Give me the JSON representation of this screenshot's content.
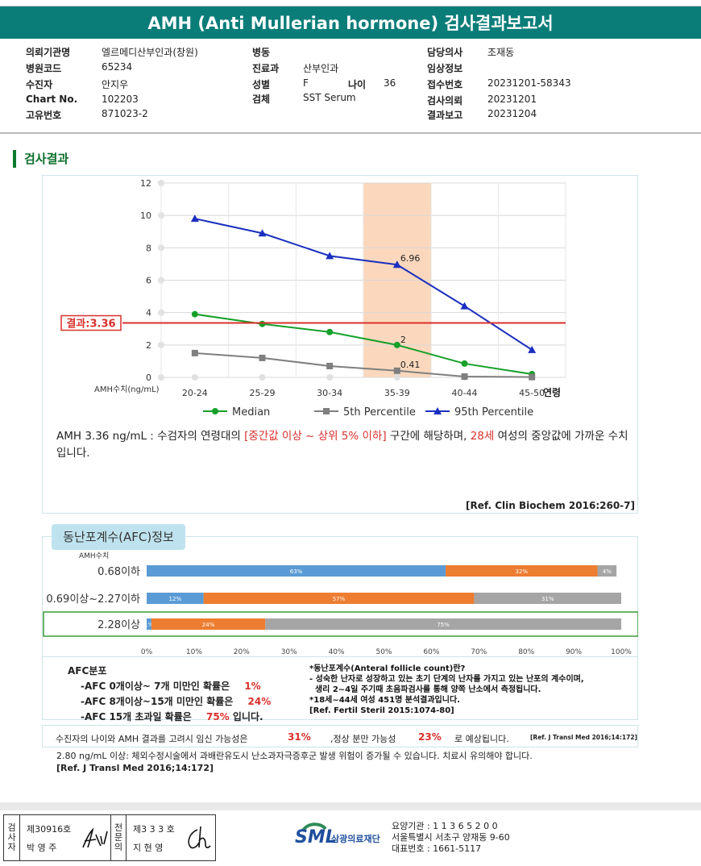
{
  "header": {
    "title": "AMH (Anti Mullerian hormone) 검사결과보고서"
  },
  "info": {
    "hospital_label": "의뢰기관명",
    "hospital": "엘르메디산부인과(창원)",
    "code_label": "병원코드",
    "code": "65234",
    "patient_label": "수진자",
    "patient": "안지우",
    "chart_label": "Chart No.",
    "chart": "102203",
    "id_label": "고유번호",
    "id": "871023-2",
    "ward_label": "병동",
    "ward": "",
    "dept_label": "진료과",
    "dept": "산부인과",
    "sex_label": "성별",
    "sex": "F",
    "age_label": "나이",
    "age": "36",
    "specimen_label": "검체",
    "specimen": "SST Serum",
    "doctor_label": "담당의사",
    "doctor": "조재동",
    "clinical_label": "임상정보",
    "clinical": "",
    "receipt_label": "접수번호",
    "receipt": "20231201-58343",
    "request_label": "검사의뢰",
    "request": "20231201",
    "report_label": "결과보고",
    "report": "20231204"
  },
  "section_title": "검사결과",
  "chart_data": {
    "type": "line",
    "categories": [
      "20-24",
      "25-29",
      "30-34",
      "35-39",
      "40-44",
      "45-50"
    ],
    "xlabel": "연령",
    "ylabel": "AMH수치(ng/mL)",
    "ylim": [
      0,
      12
    ],
    "yticks": [
      "0",
      "2",
      "4",
      "6",
      "8",
      "10",
      "12"
    ],
    "series": [
      {
        "name": "Median",
        "color": "#16a02a",
        "marker": "circle",
        "values": [
          3.9,
          3.3,
          2.8,
          2.0,
          0.85,
          0.2
        ]
      },
      {
        "name": "5th Percentile",
        "color": "#7f7f7f",
        "marker": "square",
        "values": [
          1.5,
          1.2,
          0.7,
          0.41,
          0.05,
          0.02
        ]
      },
      {
        "name": "95th Percentile",
        "color": "#1b2fbf",
        "marker": "triangle",
        "values": [
          9.8,
          8.9,
          7.5,
          6.96,
          4.4,
          1.7
        ]
      }
    ],
    "data_labels": {
      "median_35_39": "2",
      "p5_35_39": "0.41",
      "p95_35_39": "6.96"
    },
    "highlight_category": "35-39",
    "highlight_color": "#fbd8bd",
    "result": {
      "label": "결과:3.36",
      "value": 3.36,
      "color": "#d9302c"
    },
    "grid": true,
    "legend_position": "bottom"
  },
  "interpretation": {
    "p1": "AMH  3.36 ng/mL : 수검자의 연령대의 ",
    "range": "[중간값 이상 ~ 상위 5% 이하]",
    "p2": "  구간에 해당하며, ",
    "age": "28세",
    "p3": " 여성의 중앙값에 가까운 수치입니다.",
    "ref": "[Ref. Clin Biochem 2016:260-7]"
  },
  "afc": {
    "tab": "동난포계수(AFC)정보",
    "amh_header": "AMH수치",
    "rows": [
      {
        "label": "0.68이하",
        "segments": [
          63,
          32,
          4
        ],
        "labels": [
          "63%",
          "32%",
          "4%"
        ],
        "highlight": false
      },
      {
        "label": "0.69이상~2.27이하",
        "segments": [
          12,
          57,
          31
        ],
        "labels": [
          "12%",
          "57%",
          "31%"
        ],
        "highlight": false
      },
      {
        "label": "2.28이상",
        "segments": [
          1,
          24,
          75
        ],
        "labels": [
          "1%",
          "24%",
          "75%"
        ],
        "highlight": true
      }
    ],
    "colors": [
      "#5b9bd5",
      "#ed7d31",
      "#a5a5a5"
    ],
    "xticks": [
      "0%",
      "10%",
      "20%",
      "30%",
      "40%",
      "50%",
      "60%",
      "70%",
      "80%",
      "90%",
      "100%"
    ],
    "dist_title": "AFC분포",
    "dist1_pre": "-AFC  0개이상~ 7개 미만인 확률은",
    "dist1_val": "1%",
    "dist2_pre": "-AFC  8개이상~15개 미만인 확률은",
    "dist2_val": "24%",
    "dist3_pre": "-AFC  15개 초과일 확률은",
    "dist3_val": "75%",
    "dist3_post": "입니다.",
    "def1": "*동난포계수(Anteral follicle count)란?",
    "def2": "- 성숙한 난자로 성장하고 있는 초기 단계의 난자를 가지고 있는 난포의 계수이며,",
    "def3": "  생리 2~4일 주기때 초음파검사를 통해 양쪽 난소에서 측정됩니다.",
    "def4": "*18세~44세 여성 451명 분석결과입니다.",
    "def5": "[Ref. Fertil Steril 2015:1074-80]"
  },
  "probability": {
    "p1": "수진자의 나이와 AMH 결과를 고려시 임신 가능성은",
    "preg": "31%",
    "p2": ",정상 분만 가능성",
    "birth": "23%",
    "p3": "로 예상됩니다.",
    "ref": "[Ref. J Transl Med 2016;14:172]"
  },
  "note": {
    "line": "2.80  ng/mL  이상: 체외수정시술에서 과배란유도시 난소과자극증후군 발생 위험이 증가될 수 있습니다. 치료시 유의해야 합니다.",
    "ref": "[Ref. J Transl Med 2016;14:172]"
  },
  "footer": {
    "v1": [
      "검",
      "사",
      "자"
    ],
    "no1": "제30916호",
    "name1": "박  영  주",
    "v2": [
      "전",
      "문",
      "의"
    ],
    "no2": "제3 3 3 호",
    "name2": "지  현  영",
    "logo": "SML",
    "company": "삼광의료재단",
    "addr1": "요양기관 : 1 1 3 6 5 2 0 0",
    "addr2": "서울특별시 서초구 양재동 9-60",
    "addr3": "대표번호 : 1661-5117"
  }
}
